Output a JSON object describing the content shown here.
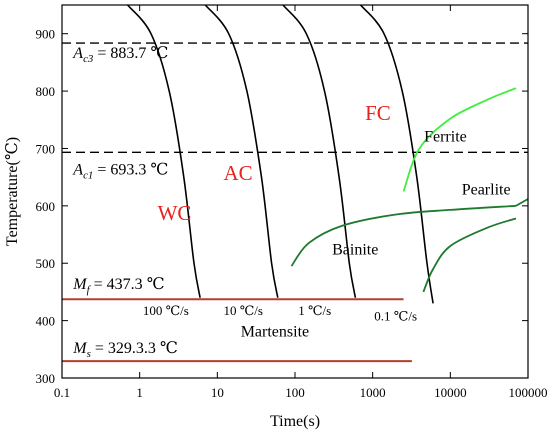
{
  "chart_data": {
    "type": "line",
    "title": "",
    "xlabel": "Time(s)",
    "ylabel": "Temperature(℃)",
    "x_scale": "log",
    "xlim": [
      0.1,
      100000
    ],
    "ylim": [
      300,
      950
    ],
    "x_tick_labels": [
      {
        "value": 0.1,
        "label": "0.1"
      },
      {
        "value": 1,
        "label": "1"
      },
      {
        "value": 10,
        "label": "10"
      },
      {
        "value": 100,
        "label": "100"
      },
      {
        "value": 1000,
        "label": "1000"
      },
      {
        "value": 10000,
        "label": "10000"
      },
      {
        "value": 100000,
        "label": "100000"
      }
    ],
    "y_tick_labels": [
      {
        "value": 300,
        "label": "300"
      },
      {
        "value": 400,
        "label": "400"
      },
      {
        "value": 500,
        "label": "500"
      },
      {
        "value": 600,
        "label": "600"
      },
      {
        "value": 700,
        "label": "700"
      },
      {
        "value": 800,
        "label": "800"
      },
      {
        "value": 900,
        "label": "900"
      }
    ],
    "reference_lines": [
      {
        "y": 883.7,
        "style": "dashed",
        "color": "#000000",
        "x_range": [
          0.1,
          100000
        ]
      },
      {
        "y": 693.3,
        "style": "dashed",
        "color": "#000000",
        "x_range": [
          0.1,
          100000
        ]
      },
      {
        "y": 437.3,
        "style": "solid",
        "color": "#b5402a",
        "x_range": [
          0.1,
          2500
        ]
      },
      {
        "y": 329.3,
        "style": "solid",
        "color": "#b5402a",
        "x_range": [
          0.1,
          3200
        ]
      }
    ],
    "cooling_curves": [
      {
        "label": "100 ℃/s",
        "x": [
          0.7,
          1.4,
          2.4,
          3.7,
          5.0,
          6.0
        ],
        "y": [
          950,
          900,
          800,
          650,
          500,
          440
        ]
      },
      {
        "label": "10 ℃/s",
        "x": [
          7,
          14,
          24,
          37,
          50,
          60
        ],
        "y": [
          950,
          900,
          800,
          650,
          500,
          440
        ]
      },
      {
        "label": "1 ℃/s",
        "x": [
          70,
          140,
          240,
          370,
          500,
          600
        ],
        "y": [
          950,
          900,
          800,
          650,
          500,
          440
        ]
      },
      {
        "label": "0.1 ℃/s",
        "x": [
          700,
          1400,
          2400,
          3700,
          5000,
          6000
        ],
        "y": [
          950,
          900,
          800,
          650,
          500,
          430
        ]
      }
    ],
    "transformation_curves": [
      {
        "label": "Ferrite",
        "color": "#3ef03e",
        "x": [
          2500,
          4000,
          10000,
          30000,
          70000
        ],
        "y": [
          625,
          700,
          752,
          785,
          805
        ]
      },
      {
        "label": "Pearlite",
        "color": "#1e7a2e",
        "x": [
          70000,
          100000
        ],
        "y": [
          600,
          612
        ]
      },
      {
        "label": "Bainite",
        "color": "#1e7a2e",
        "x": [
          90,
          150,
          400,
          2000,
          10000,
          70000
        ],
        "y": [
          495,
          535,
          565,
          585,
          593,
          600
        ]
      },
      {
        "label": "",
        "color": "#1e7a2e",
        "x": [
          4500,
          6000,
          10000,
          30000,
          70000
        ],
        "y": [
          450,
          490,
          530,
          562,
          578
        ]
      }
    ],
    "annotations": [
      {
        "id": "ac3",
        "sym": "A",
        "sub": "c3",
        "text": " = 883.7 ℃",
        "color": "#000000",
        "x": 0.14,
        "y": 858
      },
      {
        "id": "ac1",
        "sym": "A",
        "sub": "c1",
        "text": " = 693.3 ℃",
        "color": "#000000",
        "x": 0.14,
        "y": 655
      },
      {
        "id": "mf",
        "sym": "M",
        "sub": "f",
        "text": " = 437.3 ℃",
        "color": "#000000",
        "x": 0.14,
        "y": 455
      },
      {
        "id": "ms",
        "sym": "M",
        "sub": "s",
        "text": " = 329.3.3 ℃",
        "color": "#000000",
        "x": 0.14,
        "y": 344
      },
      {
        "id": "fc",
        "text": "FC",
        "color": "#e8231f",
        "x": 800,
        "y": 750
      },
      {
        "id": "ac",
        "text": "AC",
        "color": "#e8231f",
        "x": 12,
        "y": 645
      },
      {
        "id": "wc",
        "text": "WC",
        "color": "#e8231f",
        "x": 1.7,
        "y": 575
      },
      {
        "id": "ferrite",
        "text": "Ferrite",
        "color": "#000000",
        "x": 4600,
        "y": 712
      },
      {
        "id": "pearlite",
        "text": "Pearlite",
        "color": "#000000",
        "x": 14000,
        "y": 620
      },
      {
        "id": "bainite",
        "text": "Bainite",
        "color": "#000000",
        "x": 300,
        "y": 515
      },
      {
        "id": "martensite",
        "text": "Martensite",
        "color": "#000000",
        "x": 20,
        "y": 372
      },
      {
        "id": "rate100",
        "text": "100 ℃/s",
        "color": "#000000",
        "x": 1.1,
        "y": 410
      },
      {
        "id": "rate10",
        "text": "10 ℃/s",
        "color": "#000000",
        "x": 12,
        "y": 410
      },
      {
        "id": "rate1",
        "text": "1 ℃/s",
        "color": "#000000",
        "x": 110,
        "y": 410
      },
      {
        "id": "rate01",
        "text": "0.1 ℃/s",
        "color": "#000000",
        "x": 1050,
        "y": 400
      }
    ],
    "grid": false
  }
}
